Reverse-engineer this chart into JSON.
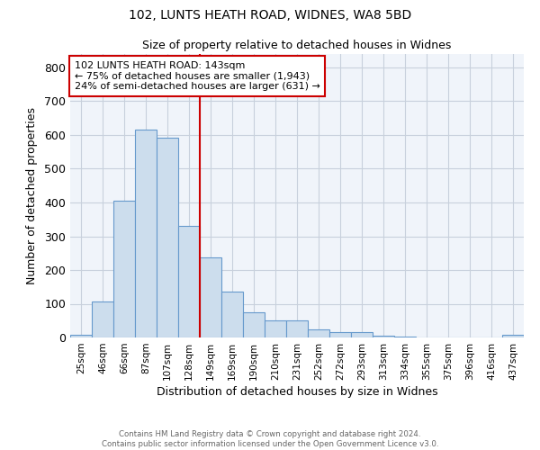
{
  "title1": "102, LUNTS HEATH ROAD, WIDNES, WA8 5BD",
  "title2": "Size of property relative to detached houses in Widnes",
  "xlabel": "Distribution of detached houses by size in Widnes",
  "ylabel": "Number of detached properties",
  "categories": [
    "25sqm",
    "46sqm",
    "66sqm",
    "87sqm",
    "107sqm",
    "128sqm",
    "149sqm",
    "169sqm",
    "190sqm",
    "210sqm",
    "231sqm",
    "252sqm",
    "272sqm",
    "293sqm",
    "313sqm",
    "334sqm",
    "355sqm",
    "375sqm",
    "396sqm",
    "416sqm",
    "437sqm"
  ],
  "values": [
    8,
    106,
    404,
    615,
    591,
    332,
    238,
    137,
    76,
    51,
    51,
    24,
    16,
    16,
    6,
    4,
    0,
    0,
    0,
    0,
    8
  ],
  "bar_color": "#ccdded",
  "bar_edge_color": "#6699cc",
  "property_line_label": "102 LUNTS HEATH ROAD: 143sqm",
  "annotation_line1": "← 75% of detached houses are smaller (1,943)",
  "annotation_line2": "24% of semi-detached houses are larger (631) →",
  "annotation_box_color": "#cc0000",
  "vline_color": "#cc0000",
  "vline_x_index": 5.5,
  "ylim": [
    0,
    840
  ],
  "yticks": [
    0,
    100,
    200,
    300,
    400,
    500,
    600,
    700,
    800
  ],
  "plot_bg_color": "#f0f4fa",
  "fig_bg_color": "#ffffff",
  "grid_color": "#c8d0dc",
  "footer1": "Contains HM Land Registry data © Crown copyright and database right 2024.",
  "footer2": "Contains public sector information licensed under the Open Government Licence v3.0."
}
